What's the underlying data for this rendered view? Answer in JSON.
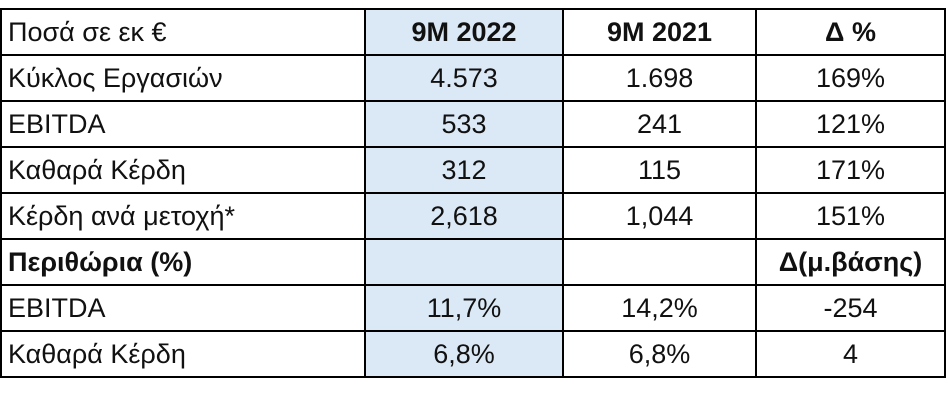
{
  "table": {
    "header": {
      "label": "Ποσά σε εκ €",
      "col1": "9M 2022",
      "col2": "9M 2021",
      "col3": "Δ %"
    },
    "rows": [
      {
        "label": "Κύκλος Εργασιών",
        "v1": "4.573",
        "v2": "1.698",
        "v3": "169%"
      },
      {
        "label": "EBITDA",
        "v1": "533",
        "v2": "241",
        "v3": "121%"
      },
      {
        "label": "Καθαρά Κέρδη",
        "v1": "312",
        "v2": "115",
        "v3": "171%"
      },
      {
        "label": "Κέρδη ανά μετοχή*",
        "v1": "2,618",
        "v2": "1,044",
        "v3": "151%"
      }
    ],
    "margins_header": {
      "label": "Περιθώρια (%)",
      "col3": "Δ(μ.βάσης)"
    },
    "margin_rows": [
      {
        "label": "EBITDA",
        "v1": "11,7%",
        "v2": "14,2%",
        "v3": "-254"
      },
      {
        "label": "Καθαρά Κέρδη",
        "v1": "6,8%",
        "v2": "6,8%",
        "v3": "4"
      }
    ]
  },
  "colors": {
    "highlight_column": "#dbe8f5",
    "header_text": "#1f3a7a"
  }
}
